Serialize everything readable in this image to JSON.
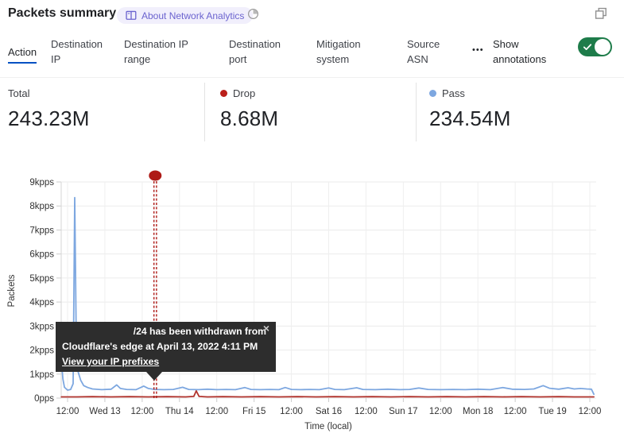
{
  "header": {
    "title": "Packets summary",
    "about_badge": "About Network Analytics"
  },
  "icons": {
    "book": "book-icon",
    "history": "history-clock-icon",
    "more": "ellipsis-icon",
    "window": "overlap-squares-icon",
    "close_glyph": "×"
  },
  "tabs": {
    "items": [
      {
        "label": "Action",
        "selected": true
      },
      {
        "label": "Destination IP",
        "selected": false
      },
      {
        "label": "Destination IP range",
        "selected": false
      },
      {
        "label": "Destination port",
        "selected": false
      },
      {
        "label": "Mitigation system",
        "selected": false
      },
      {
        "label": "Source ASN",
        "selected": false
      }
    ],
    "more_ellipsis": "•••",
    "show_annotations_label": "Show annotations",
    "annotations_toggle_on": true
  },
  "stats": [
    {
      "label": "Total",
      "value": "243.23M"
    },
    {
      "label": "Drop",
      "value": "8.68M",
      "dot_color": "#bb1f1a"
    },
    {
      "label": "Pass",
      "value": "234.54M",
      "dot_color": "#7da7e0"
    }
  ],
  "colors": {
    "accent_blue": "#0051c3",
    "toggle_green": "#1e7c4a",
    "badge_bg": "#f1effc",
    "badge_text": "#6b63cf",
    "pass_blue": "#7da7e0",
    "drop_red": "#b0322c",
    "annotation_red": "#ae1a16"
  },
  "chart_data": {
    "type": "line",
    "title": "Packets summary",
    "xlabel": "Time (local)",
    "ylabel": "Packets",
    "y_unit": "kpps",
    "ylim": [
      0,
      9
    ],
    "grid": true,
    "yticks": [
      "0pps",
      "1kpps",
      "2kpps",
      "3kpps",
      "4kpps",
      "5kpps",
      "6kpps",
      "7kpps",
      "8kpps",
      "9kpps"
    ],
    "xticks": [
      "12:00",
      "Wed 13",
      "12:00",
      "Thu 14",
      "12:00",
      "Fri 15",
      "12:00",
      "Sat 16",
      "12:00",
      "Sun 17",
      "12:00",
      "Mon 18",
      "12:00",
      "Tue 19",
      "12:00"
    ],
    "x_axis_note": "x values are hours after Tue Apr 12 2022 12:00 local; ticks every 12h",
    "series": [
      {
        "name": "Pass",
        "color": "#7da7e0",
        "points": [
          [
            -2,
            1.6
          ],
          [
            -1.5,
            0.8
          ],
          [
            -1,
            0.45
          ],
          [
            0,
            0.33
          ],
          [
            1,
            0.36
          ],
          [
            1.8,
            0.6
          ],
          [
            2.3,
            8.35
          ],
          [
            2.9,
            1.3
          ],
          [
            3.5,
            1.05
          ],
          [
            4.2,
            0.75
          ],
          [
            5.2,
            0.52
          ],
          [
            6.5,
            0.44
          ],
          [
            8,
            0.38
          ],
          [
            11,
            0.35
          ],
          [
            14,
            0.37
          ],
          [
            15.8,
            0.55
          ],
          [
            17,
            0.4
          ],
          [
            19,
            0.36
          ],
          [
            22,
            0.35
          ],
          [
            24.5,
            0.5
          ],
          [
            26,
            0.4
          ],
          [
            28,
            0.36
          ],
          [
            31,
            0.35
          ],
          [
            34,
            0.36
          ],
          [
            37,
            0.45
          ],
          [
            39,
            0.36
          ],
          [
            42,
            0.35
          ],
          [
            45,
            0.37
          ],
          [
            48,
            0.35
          ],
          [
            51,
            0.36
          ],
          [
            54,
            0.35
          ],
          [
            57,
            0.44
          ],
          [
            59,
            0.36
          ],
          [
            62,
            0.35
          ],
          [
            65,
            0.36
          ],
          [
            68,
            0.35
          ],
          [
            70,
            0.44
          ],
          [
            72,
            0.36
          ],
          [
            75,
            0.35
          ],
          [
            78,
            0.36
          ],
          [
            81,
            0.35
          ],
          [
            84,
            0.42
          ],
          [
            86,
            0.36
          ],
          [
            89,
            0.35
          ],
          [
            93,
            0.43
          ],
          [
            95,
            0.36
          ],
          [
            99,
            0.35
          ],
          [
            103,
            0.37
          ],
          [
            107,
            0.35
          ],
          [
            110,
            0.36
          ],
          [
            113,
            0.42
          ],
          [
            116,
            0.36
          ],
          [
            120,
            0.35
          ],
          [
            124,
            0.36
          ],
          [
            128,
            0.35
          ],
          [
            132,
            0.37
          ],
          [
            136,
            0.35
          ],
          [
            140,
            0.44
          ],
          [
            143,
            0.37
          ],
          [
            147,
            0.36
          ],
          [
            150,
            0.38
          ],
          [
            153,
            0.52
          ],
          [
            155,
            0.41
          ],
          [
            158,
            0.37
          ],
          [
            161,
            0.43
          ],
          [
            163,
            0.38
          ],
          [
            165,
            0.4
          ],
          [
            167,
            0.38
          ],
          [
            168.5,
            0.37
          ],
          [
            169.3,
            0.16
          ]
        ]
      },
      {
        "name": "Drop",
        "color": "#b0322c",
        "points": [
          [
            -2,
            0.05
          ],
          [
            3,
            0.05
          ],
          [
            8,
            0.06
          ],
          [
            14,
            0.05
          ],
          [
            20,
            0.06
          ],
          [
            26,
            0.05
          ],
          [
            32,
            0.06
          ],
          [
            38,
            0.05
          ],
          [
            40.6,
            0.07
          ],
          [
            41.4,
            0.3
          ],
          [
            42.3,
            0.07
          ],
          [
            45,
            0.05
          ],
          [
            50,
            0.06
          ],
          [
            56,
            0.05
          ],
          [
            62,
            0.06
          ],
          [
            68,
            0.05
          ],
          [
            74,
            0.06
          ],
          [
            80,
            0.05
          ],
          [
            86,
            0.06
          ],
          [
            92,
            0.05
          ],
          [
            98,
            0.06
          ],
          [
            104,
            0.05
          ],
          [
            110,
            0.06
          ],
          [
            116,
            0.05
          ],
          [
            122,
            0.06
          ],
          [
            128,
            0.05
          ],
          [
            134,
            0.06
          ],
          [
            140,
            0.05
          ],
          [
            146,
            0.06
          ],
          [
            152,
            0.05
          ],
          [
            158,
            0.06
          ],
          [
            163,
            0.05
          ],
          [
            169.3,
            0.05
          ]
        ]
      }
    ],
    "annotation": {
      "x_hours": 28.2,
      "color": "#ae1a16",
      "tooltip": {
        "line1": "/24 has been withdrawn from",
        "line2": "Cloudflare's edge at April 13, 2022 4:11 PM",
        "link_label": "View your IP prefixes",
        "close_glyph": "×"
      }
    }
  }
}
